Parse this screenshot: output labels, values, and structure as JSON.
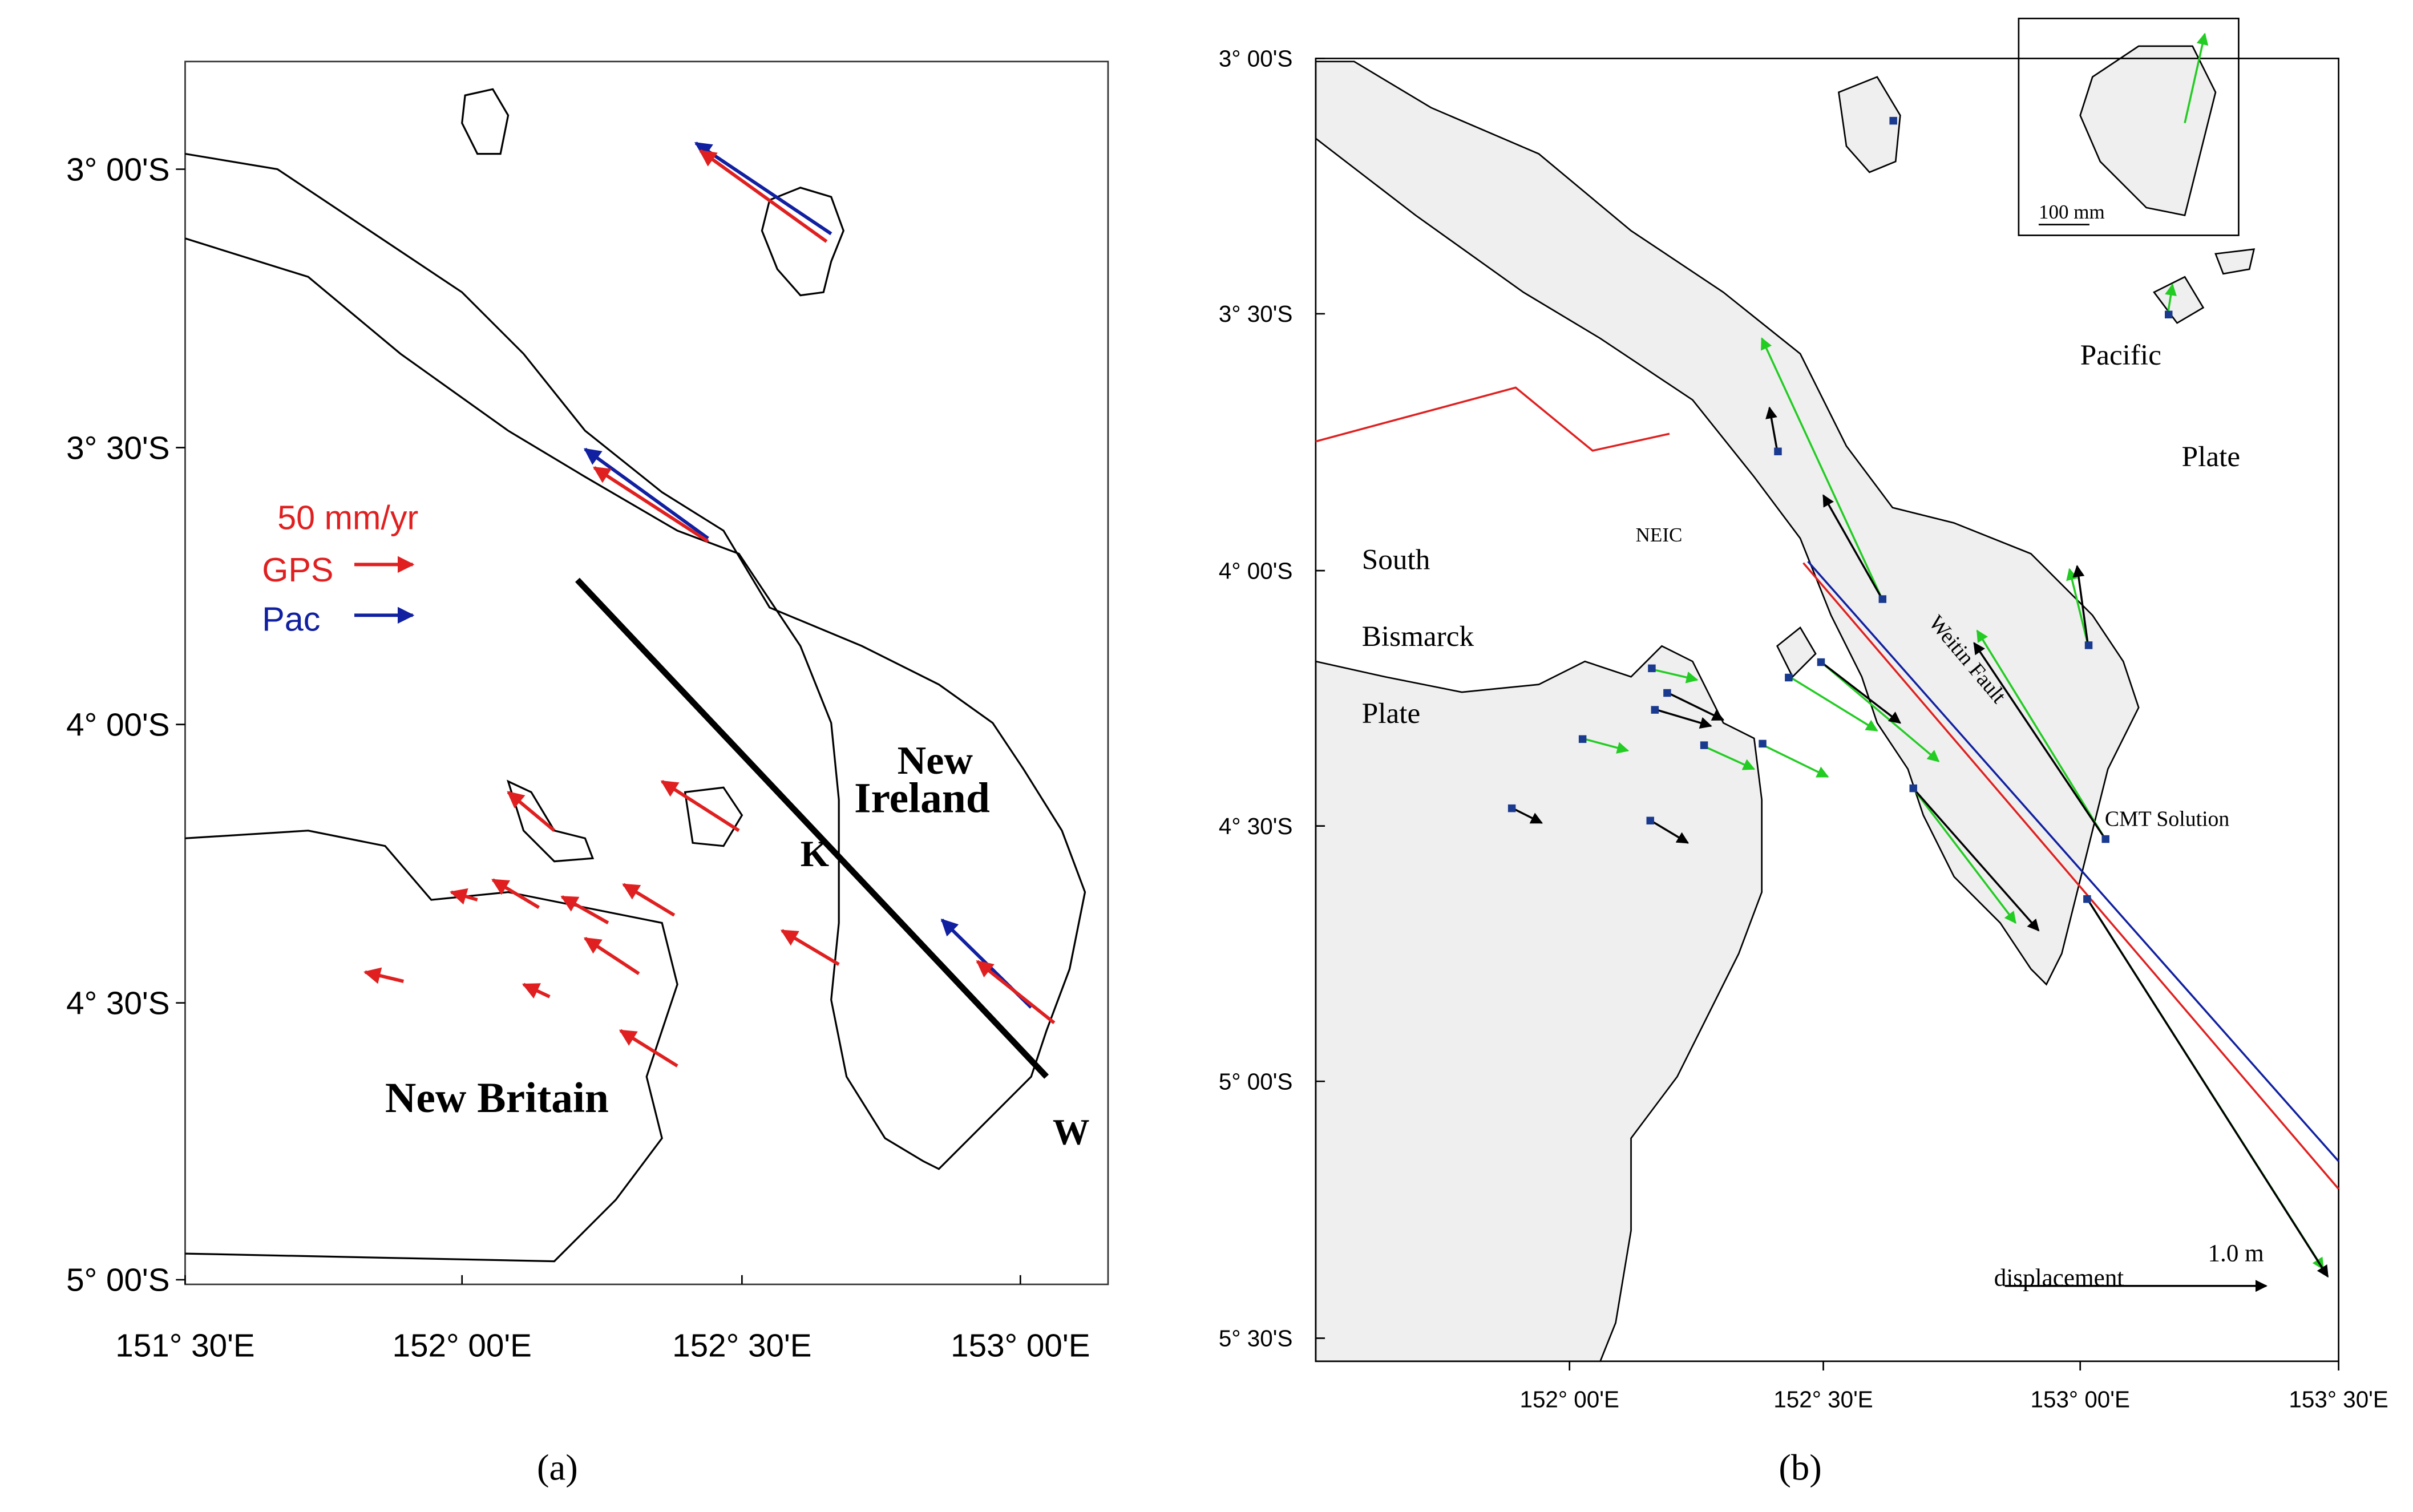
{
  "panels": [
    {
      "caption": "(a)",
      "y_tick_labels": [
        "3° 00'S",
        "3° 30'S",
        "4° 00'S",
        "4° 30'S",
        "5° 00'S"
      ],
      "x_tick_labels": [
        "151° 30'E",
        "152° 00'E",
        "152° 30'E",
        "153° 00'E"
      ],
      "legend": {
        "scale": "50 mm/yr",
        "gps": "GPS",
        "pac": "Pac"
      },
      "places": {
        "new": "New",
        "ireland": "Ireland",
        "k": "K",
        "w": "W",
        "new_britain": "New Britain"
      }
    },
    {
      "caption": "(b)",
      "y_tick_labels": [
        "3° 00'S",
        "3° 30'S",
        "4° 00'S",
        "4° 30'S",
        "5° 00'S",
        "5° 30'S"
      ],
      "x_tick_labels": [
        "152° 00'E",
        "152° 30'E",
        "153° 00'E",
        "153° 30'E"
      ],
      "places": {
        "south": "South",
        "bismarck": "Bismarck",
        "plate_west": "Plate",
        "neic": "NEIC",
        "pacific": "Pacific",
        "plate_east": "Plate",
        "fault": "Weitin Fault",
        "cmt": "CMT Solution"
      },
      "inset_scale": "100 mm",
      "displacement": "displacement",
      "displacement_scale": "1.0 m"
    }
  ]
}
